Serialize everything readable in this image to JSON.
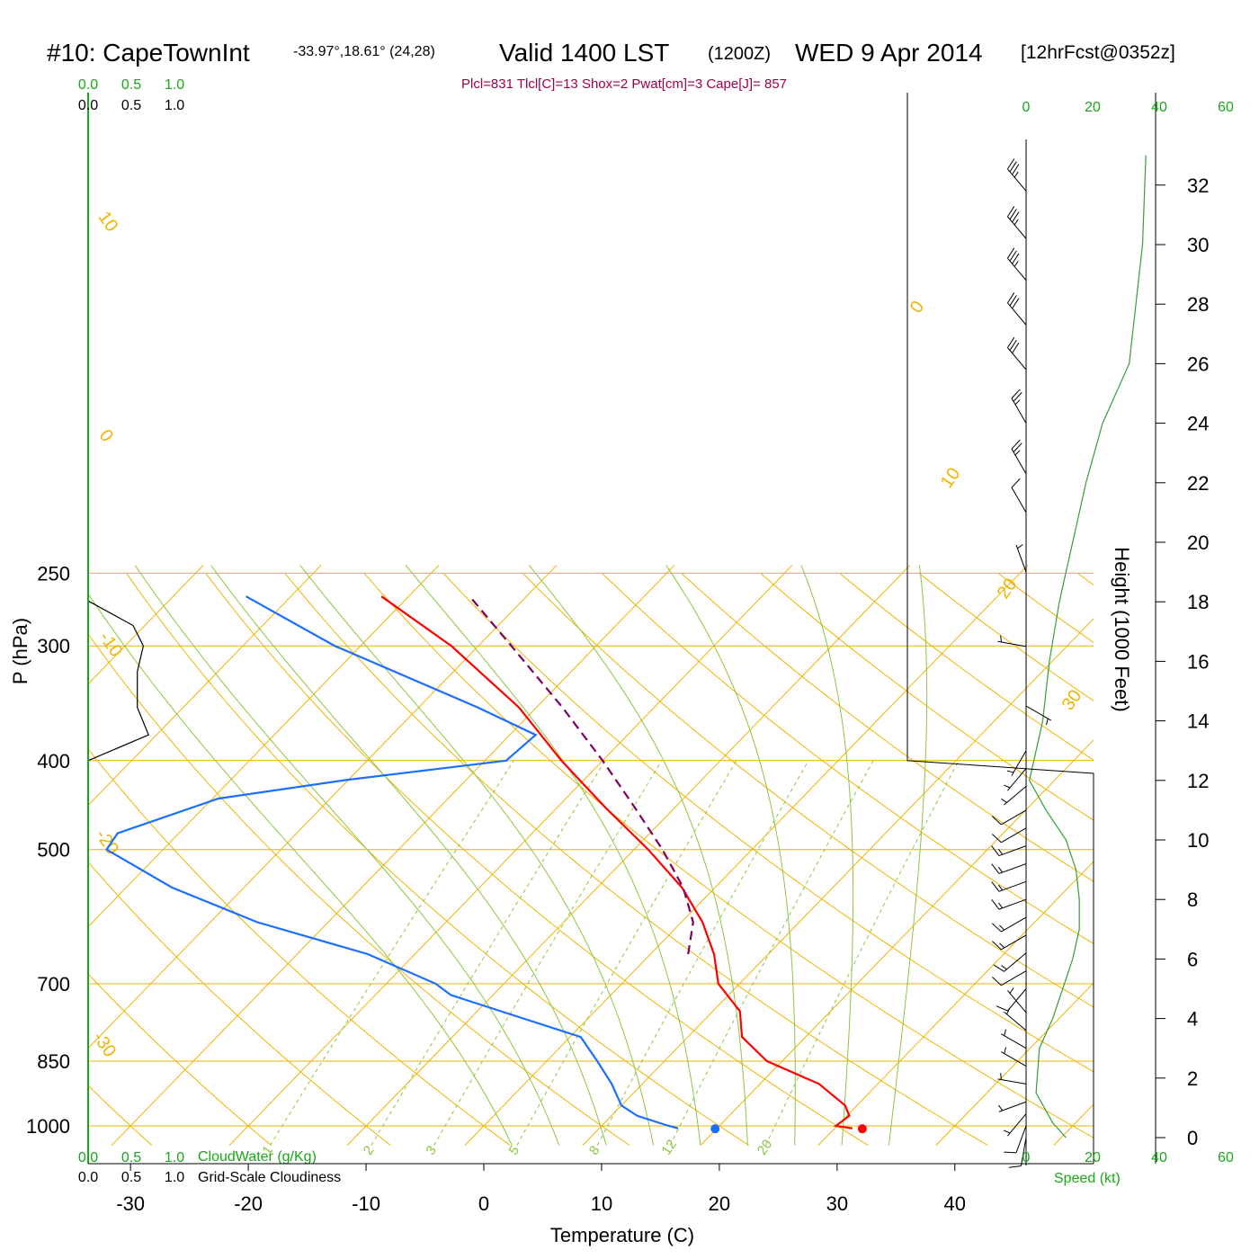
{
  "header": {
    "station": "#10: CapeTownInt",
    "coords": "-33.97°,18.61° (24,28)",
    "valid": "Valid 1400 LST",
    "zulu": "(1200Z)",
    "date": "WED 9 Apr 2014",
    "forecast": "[12hrFcst@0352z]",
    "indices": "Plcl=831 Tlcl[C]=13 Shox=2 Pwat[cm]=3 Cape[J]= 857"
  },
  "colors": {
    "temperature": "#ff0000",
    "dewpoint": "#1a6fff",
    "parcel": "#800060",
    "isobar_isotherm": "#f0b400",
    "mixing_ratio": "#8cc63f",
    "green_text": "#18a818",
    "cloud_line": "#000000",
    "wind_speed": "#33a033"
  },
  "chart_data": [
    {
      "type": "line",
      "title": "",
      "xlabel": "Temperature (C)",
      "ylabel": "P (hPa)",
      "y_scale": "log",
      "ylim": [
        1050,
        250
      ],
      "xlim_at_1000hPa": [
        -33.5,
        46
      ],
      "skew": "isotherms tilt right with height",
      "x_ticks": [
        "-30",
        "-20",
        "-10",
        "0",
        "10",
        "20",
        "30",
        "40"
      ],
      "y_ticks": [
        "250",
        "300",
        "400",
        "500",
        "700",
        "850",
        "1000"
      ],
      "isotherm_labels": [
        "10",
        "0",
        "-10",
        "-20",
        "-30",
        "0",
        "10",
        "20",
        "30"
      ],
      "mixing_ratio_labels": [
        "1",
        "2",
        "3",
        "5",
        "8",
        "12",
        "20"
      ],
      "series": [
        {
          "name": "temperature",
          "points": [
            [
              1006,
              31.5
            ],
            [
              1000,
              29.9
            ],
            [
              975,
              30.2
            ],
            [
              950,
              29.0
            ],
            [
              900,
              25.0
            ],
            [
              850,
              18.7
            ],
            [
              800,
              14.6
            ],
            [
              750,
              12.3
            ],
            [
              700,
              8.2
            ],
            [
              650,
              5.4
            ],
            [
              600,
              1.8
            ],
            [
              550,
              -2.8
            ],
            [
              500,
              -8.8
            ],
            [
              450,
              -15.9
            ],
            [
              400,
              -23.5
            ],
            [
              350,
              -31.5
            ],
            [
              300,
              -42.3
            ],
            [
              265,
              -52.3
            ]
          ]
        },
        {
          "name": "dewpoint",
          "points": [
            [
              1006,
              16.7
            ],
            [
              1000,
              15.7
            ],
            [
              975,
              12.2
            ],
            [
              950,
              10.0
            ],
            [
              900,
              7.4
            ],
            [
              850,
              4.3
            ],
            [
              800,
              0.9
            ],
            [
              750,
              -8.0
            ],
            [
              720,
              -13.6
            ],
            [
              700,
              -15.8
            ],
            [
              650,
              -24.0
            ],
            [
              600,
              -36.0
            ],
            [
              550,
              -46.1
            ],
            [
              500,
              -54.8
            ],
            [
              480,
              -55.2
            ],
            [
              440,
              -49.5
            ],
            [
              420,
              -40.2
            ],
            [
              400,
              -28.2
            ],
            [
              375,
              -27.8
            ],
            [
              350,
              -35.0
            ],
            [
              300,
              -52.2
            ],
            [
              265,
              -63.8
            ]
          ]
        },
        {
          "name": "parcel",
          "style": "dashed",
          "points": [
            [
              650,
              3.2
            ],
            [
              600,
              1.0
            ],
            [
              550,
              -2.7
            ],
            [
              500,
              -7.6
            ],
            [
              450,
              -13.4
            ],
            [
              400,
              -20.0
            ],
            [
              350,
              -27.8
            ],
            [
              300,
              -37.2
            ],
            [
              265,
              -44.8
            ]
          ]
        }
      ],
      "surface_markers": {
        "temperature": 32.3,
        "dewpoint": 19.8
      },
      "cloud_panel": {
        "top_axis_green": [
          "0.0",
          "0.5",
          "1.0"
        ],
        "top_axis_black": [
          "0.0",
          "0.5",
          "1.0"
        ],
        "bottom_axis_green": [
          "0.0",
          "0.5",
          "1.0"
        ],
        "bottom_axis_black": [
          "0.0",
          "0.5",
          "1.0"
        ],
        "legend_green": "CloudWater (g/Kg)",
        "legend_black": "Grid-Scale Cloudiness",
        "cloudiness": [
          [
            400,
            0.0
          ],
          [
            375,
            0.7
          ],
          [
            350,
            0.57
          ],
          [
            320,
            0.57
          ],
          [
            300,
            0.64
          ],
          [
            285,
            0.52
          ],
          [
            268,
            0.0
          ]
        ]
      },
      "wind_profile": {
        "xlabel": "Speed (kt)",
        "x_ticks": [
          "0",
          "20",
          "40",
          "60"
        ],
        "y2label": "Height (1000 Feet)",
        "y2_ticks": [
          "0",
          "2",
          "4",
          "6",
          "8",
          "10",
          "12",
          "14",
          "16",
          "18",
          "20",
          "22",
          "24",
          "26",
          "28",
          "30",
          "32"
        ],
        "speed": [
          [
            0.0,
            12
          ],
          [
            0.5,
            8
          ],
          [
            1.5,
            3
          ],
          [
            3,
            4
          ],
          [
            4,
            8
          ],
          [
            5,
            11
          ],
          [
            6,
            14
          ],
          [
            7,
            16
          ],
          [
            8,
            16
          ],
          [
            9,
            15
          ],
          [
            10,
            12
          ],
          [
            11,
            6
          ],
          [
            12,
            1
          ],
          [
            13,
            3
          ],
          [
            14,
            5
          ],
          [
            16,
            7
          ],
          [
            18,
            10
          ],
          [
            20,
            14
          ],
          [
            22,
            18
          ],
          [
            24,
            23
          ],
          [
            26,
            31
          ],
          [
            28,
            33
          ],
          [
            30,
            35
          ],
          [
            33,
            36
          ]
        ],
        "barbs": [
          {
            "h": 0.0,
            "dir": 190,
            "spd": 10
          },
          {
            "h": 0.4,
            "dir": 200,
            "spd": 10
          },
          {
            "h": 0.8,
            "dir": 220,
            "spd": 5
          },
          {
            "h": 1.2,
            "dir": 250,
            "spd": 5
          },
          {
            "h": 1.8,
            "dir": 280,
            "spd": 5
          },
          {
            "h": 2.4,
            "dir": 300,
            "spd": 5
          },
          {
            "h": 3.0,
            "dir": 300,
            "spd": 5
          },
          {
            "h": 3.6,
            "dir": 310,
            "spd": 5
          },
          {
            "h": 4.2,
            "dir": 320,
            "spd": 5
          },
          {
            "h": 5.0,
            "dir": 220,
            "spd": 10
          },
          {
            "h": 5.6,
            "dir": 240,
            "spd": 10
          },
          {
            "h": 6.2,
            "dir": 230,
            "spd": 15
          },
          {
            "h": 6.8,
            "dir": 240,
            "spd": 15
          },
          {
            "h": 7.4,
            "dir": 240,
            "spd": 15
          },
          {
            "h": 8.0,
            "dir": 250,
            "spd": 15
          },
          {
            "h": 8.6,
            "dir": 250,
            "spd": 15
          },
          {
            "h": 9.2,
            "dir": 250,
            "spd": 15
          },
          {
            "h": 9.8,
            "dir": 250,
            "spd": 15
          },
          {
            "h": 10.4,
            "dir": 240,
            "spd": 10
          },
          {
            "h": 11.0,
            "dir": 240,
            "spd": 10
          },
          {
            "h": 11.8,
            "dir": 230,
            "spd": 5
          },
          {
            "h": 12.4,
            "dir": 220,
            "spd": 5
          },
          {
            "h": 13.0,
            "dir": 210,
            "spd": 5
          },
          {
            "h": 14.5,
            "dir": 120,
            "spd": 5
          },
          {
            "h": 16.5,
            "dir": 280,
            "spd": 5
          },
          {
            "h": 19.0,
            "dir": 340,
            "spd": 5
          },
          {
            "h": 21.0,
            "dir": 330,
            "spd": 10
          },
          {
            "h": 22.3,
            "dir": 330,
            "spd": 25
          },
          {
            "h": 24.0,
            "dir": 330,
            "spd": 25
          },
          {
            "h": 25.8,
            "dir": 320,
            "spd": 30
          },
          {
            "h": 27.3,
            "dir": 320,
            "spd": 30
          },
          {
            "h": 28.8,
            "dir": 320,
            "spd": 35
          },
          {
            "h": 30.2,
            "dir": 320,
            "spd": 35
          },
          {
            "h": 31.8,
            "dir": 320,
            "spd": 35
          }
        ]
      }
    }
  ]
}
